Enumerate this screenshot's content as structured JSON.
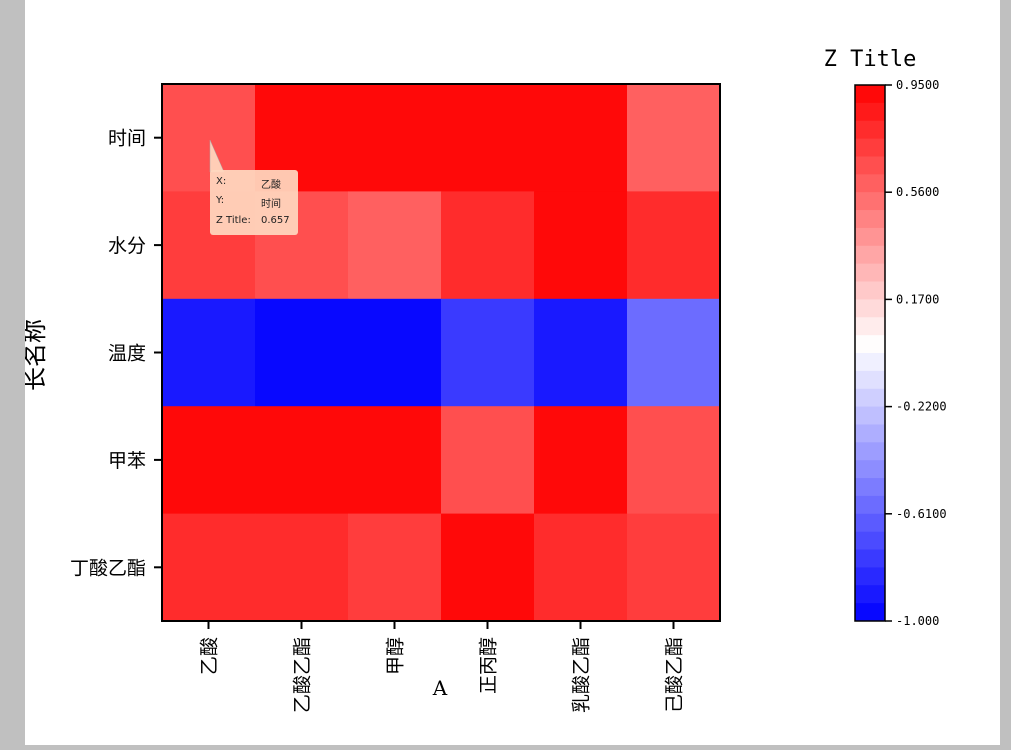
{
  "chart_data": {
    "type": "heatmap",
    "x_title": "A",
    "y_title": "长名称",
    "z_title": "Z Title",
    "x_categories": [
      "乙酸",
      "乙酸乙酯",
      "甲醇",
      "正丙醇",
      "乳酸乙酯",
      "己酸乙酯"
    ],
    "y_categories": [
      "时间",
      "水分",
      "温度",
      "甲苯",
      "丁酸乙酯"
    ],
    "z": [
      [
        0.657,
        0.95,
        0.95,
        0.95,
        0.89,
        0.62
      ],
      [
        0.75,
        0.68,
        0.62,
        0.8,
        0.95,
        0.8
      ],
      [
        -0.93,
        -1.0,
        -1.0,
        -0.79,
        -0.93,
        -0.57
      ],
      [
        0.95,
        0.95,
        0.89,
        0.68,
        0.95,
        0.68
      ],
      [
        0.82,
        0.82,
        0.75,
        0.93,
        0.82,
        0.75
      ]
    ],
    "zlim": [
      -1.0,
      0.95
    ],
    "colorbar_levels": 30,
    "colorbar_ticks": [
      "0.9500",
      "0.5600",
      "0.1700",
      "-0.2200",
      "-0.6100",
      "-1.000"
    ],
    "colorbar_tick_values": [
      0.95,
      0.56,
      0.17,
      -0.22,
      -0.61,
      -1.0
    ],
    "colors": {
      "low": "#0000ff",
      "mid": "#ffffff",
      "high": "#ff0000"
    }
  },
  "tooltip": {
    "x_label": "X:",
    "x_value": "乙酸",
    "y_label": "Y:",
    "y_value": "时间",
    "z_label": "Z Title:",
    "z_value": "0.657"
  }
}
